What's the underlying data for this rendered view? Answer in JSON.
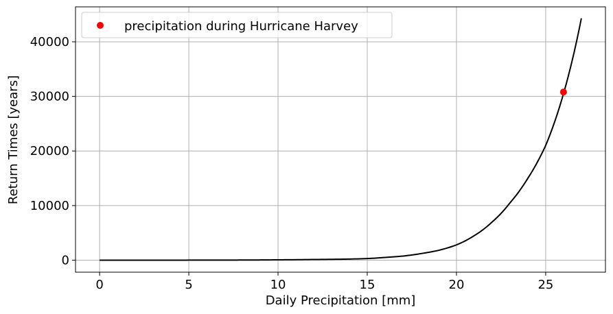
{
  "chart_data": {
    "type": "line",
    "title": "",
    "xlabel": "Daily Precipitation [mm]",
    "ylabel": "Return Times [years]",
    "xlim": [
      -1.35,
      28.35
    ],
    "ylim": [
      -2200,
      46400
    ],
    "xticks": [
      0,
      5,
      10,
      15,
      20,
      25
    ],
    "yticks": [
      0,
      10000,
      20000,
      30000,
      40000
    ],
    "grid": true,
    "legend": {
      "placement": "top-left",
      "entries": [
        "precipitation during Hurricane Harvey"
      ]
    },
    "series": [
      {
        "kind": "line",
        "color": "#000000",
        "x": [
          0,
          5,
          10,
          12,
          14,
          15,
          16,
          17,
          18,
          19,
          20,
          21,
          22,
          23,
          24,
          25,
          26,
          27
        ],
        "y": [
          1,
          6,
          60,
          120,
          200,
          300,
          500,
          750,
          1200,
          1800,
          2800,
          4500,
          7000,
          10500,
          15000,
          21000,
          30500,
          44300
        ]
      },
      {
        "kind": "scatter",
        "name": "precipitation during Hurricane Harvey",
        "color": "#ff0000",
        "x": [
          26
        ],
        "y": [
          30800
        ]
      }
    ]
  }
}
